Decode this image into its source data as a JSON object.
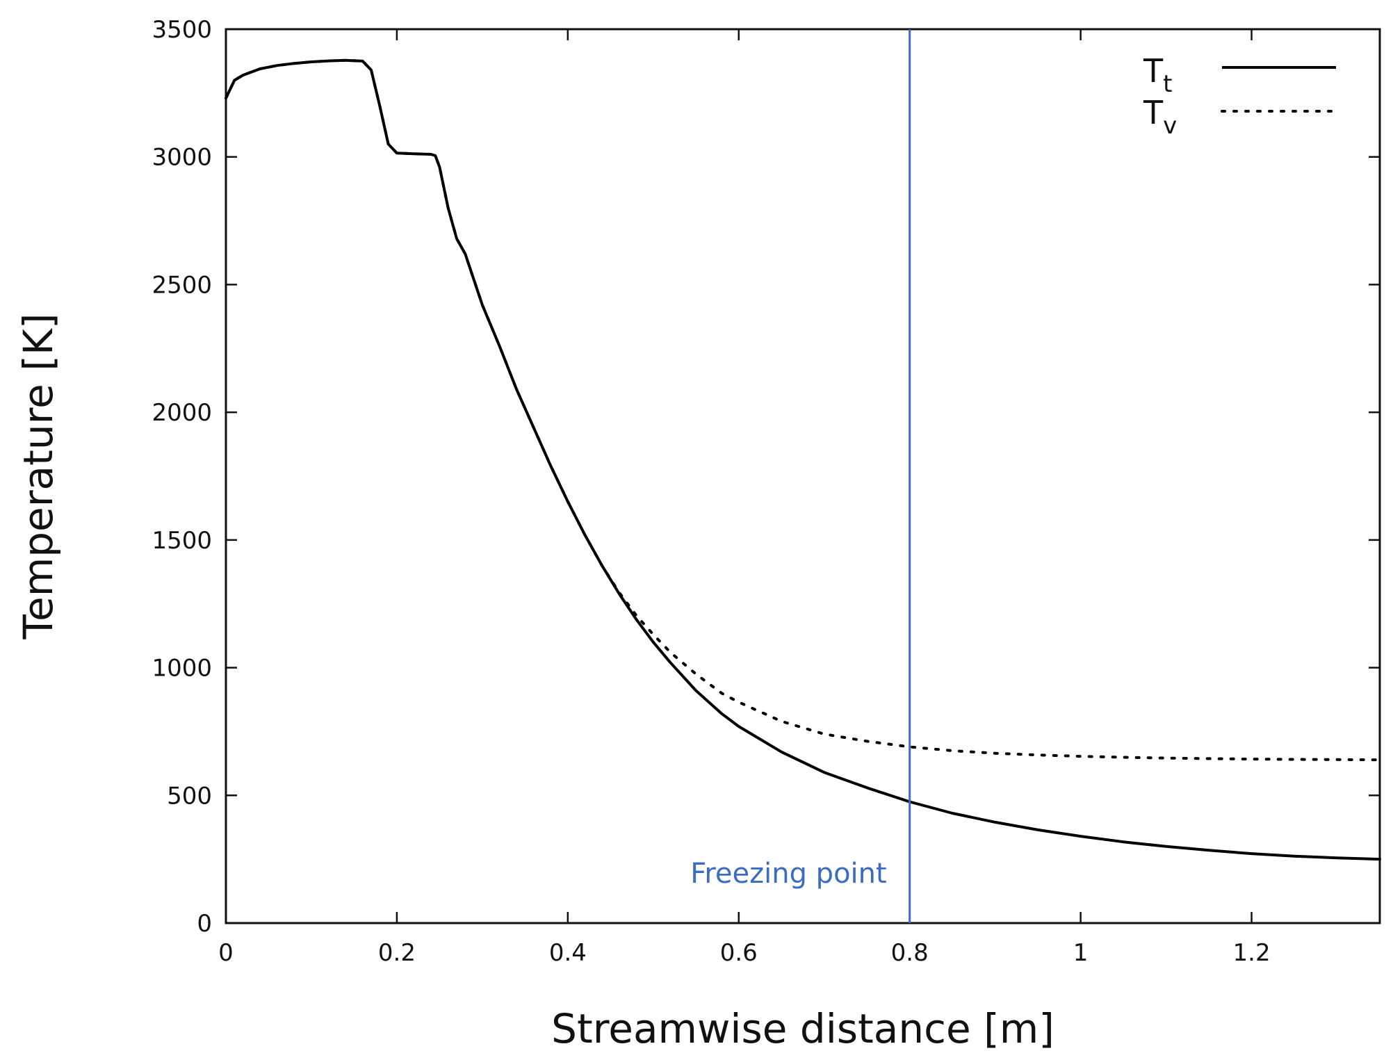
{
  "chart_data": {
    "type": "line",
    "title": "",
    "xlabel": "Streamwise distance [m]",
    "ylabel": "Temperature [K]",
    "xlim": [
      0,
      1.35
    ],
    "ylim": [
      0,
      3500
    ],
    "xticks": [
      0,
      0.2,
      0.4,
      0.6,
      0.8,
      1,
      1.2
    ],
    "xtick_labels": [
      "0",
      "0.2",
      "0.4",
      "0.6",
      "0.8",
      "1",
      "1.2"
    ],
    "yticks": [
      0,
      500,
      1000,
      1500,
      2000,
      2500,
      3000,
      3500
    ],
    "ytick_labels": [
      "0",
      "500",
      "1000",
      "1500",
      "2000",
      "2500",
      "3000",
      "3500"
    ],
    "grid": false,
    "legend_position": "top-right",
    "series": [
      {
        "name": "T",
        "subscript": "t",
        "style": "solid",
        "color": "#000000",
        "x": [
          0,
          0.01,
          0.02,
          0.04,
          0.06,
          0.08,
          0.1,
          0.12,
          0.14,
          0.16,
          0.17,
          0.18,
          0.19,
          0.2,
          0.22,
          0.24,
          0.245,
          0.25,
          0.26,
          0.27,
          0.28,
          0.3,
          0.32,
          0.34,
          0.36,
          0.38,
          0.4,
          0.42,
          0.44,
          0.46,
          0.48,
          0.5,
          0.52,
          0.55,
          0.58,
          0.6,
          0.65,
          0.7,
          0.75,
          0.8,
          0.85,
          0.9,
          0.95,
          1.0,
          1.05,
          1.1,
          1.15,
          1.2,
          1.25,
          1.3,
          1.35
        ],
        "values": [
          3230,
          3300,
          3320,
          3345,
          3358,
          3366,
          3372,
          3376,
          3378,
          3375,
          3340,
          3200,
          3050,
          3015,
          3012,
          3010,
          3005,
          2960,
          2800,
          2680,
          2620,
          2420,
          2260,
          2090,
          1940,
          1790,
          1650,
          1520,
          1400,
          1290,
          1190,
          1100,
          1020,
          910,
          820,
          770,
          670,
          590,
          530,
          475,
          430,
          395,
          365,
          340,
          318,
          300,
          285,
          272,
          262,
          255,
          250
        ]
      },
      {
        "name": "T",
        "subscript": "v",
        "style": "dotted",
        "color": "#000000",
        "x": [
          0,
          0.01,
          0.02,
          0.04,
          0.06,
          0.08,
          0.1,
          0.12,
          0.14,
          0.16,
          0.17,
          0.18,
          0.19,
          0.2,
          0.22,
          0.24,
          0.245,
          0.25,
          0.26,
          0.27,
          0.28,
          0.3,
          0.32,
          0.34,
          0.36,
          0.38,
          0.4,
          0.42,
          0.44,
          0.46,
          0.48,
          0.5,
          0.52,
          0.55,
          0.58,
          0.6,
          0.65,
          0.7,
          0.75,
          0.8,
          0.85,
          0.9,
          0.95,
          1.0,
          1.05,
          1.1,
          1.15,
          1.2,
          1.25,
          1.3,
          1.35
        ],
        "values": [
          3230,
          3300,
          3320,
          3345,
          3358,
          3366,
          3372,
          3376,
          3378,
          3375,
          3340,
          3200,
          3050,
          3015,
          3012,
          3010,
          3005,
          2960,
          2800,
          2680,
          2620,
          2420,
          2260,
          2090,
          1940,
          1790,
          1650,
          1520,
          1400,
          1295,
          1205,
          1130,
          1060,
          975,
          900,
          865,
          790,
          740,
          712,
          690,
          675,
          665,
          658,
          653,
          649,
          646,
          644,
          642,
          641,
          640,
          639
        ]
      }
    ],
    "annotations": [
      {
        "type": "vline",
        "x": 0.8,
        "label": "Freezing point",
        "color": "#3b6cc4"
      }
    ]
  }
}
